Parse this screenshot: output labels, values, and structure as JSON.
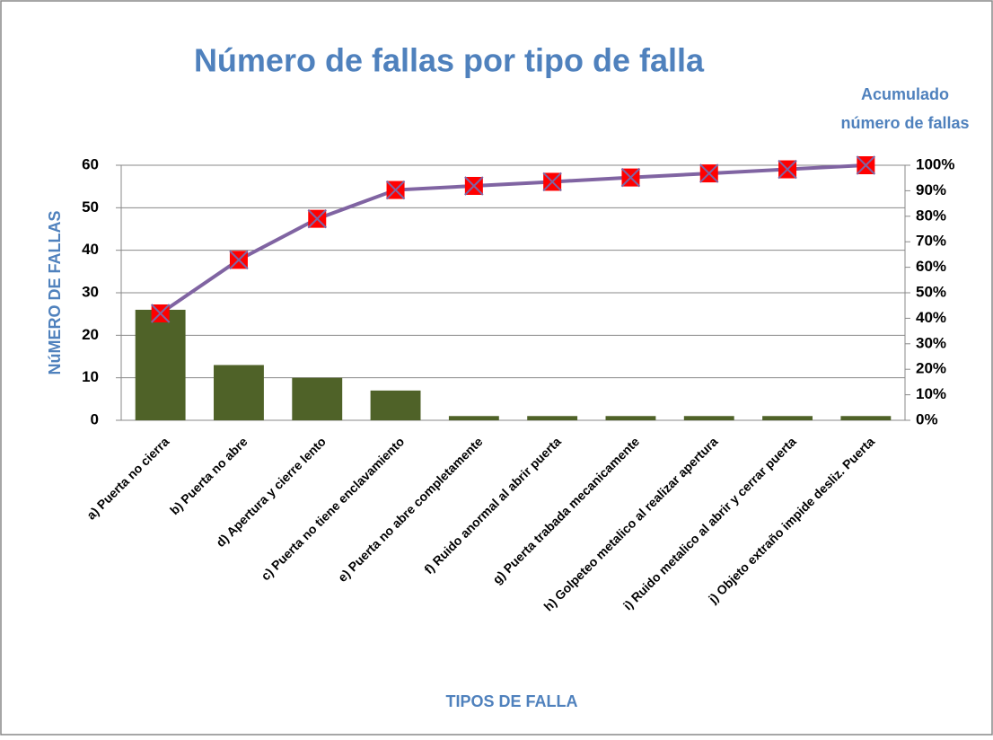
{
  "chart_data": {
    "type": "pareto",
    "title": "Número de fallas por tipo de falla",
    "x_label": "TIPOS DE FALLA",
    "y_label": "NúMERO DE FALLAS",
    "y2_label": [
      "Acumulado",
      "número de fallas"
    ],
    "categories": [
      "a) Puerta no cierra",
      "b) Puerta no abre",
      "d) Apertura y cierre lento",
      "c) Puerta no tiene enclavamiento",
      "e) Puerta no abre completamente",
      "f) Ruido anormal al abrir puerta",
      "g) Puerta trabada mecanicamente",
      "h) Golpeteo metalico al realizar apertura",
      "i) Ruido metalico al abrir y cerrar puerta",
      "j) Objeto extraño impide desliz. Puerta"
    ],
    "series": [
      {
        "type": "bar",
        "color": "#4f6228",
        "values": [
          26,
          13,
          10,
          7,
          1,
          1,
          1,
          1,
          1,
          1
        ]
      },
      {
        "type": "line",
        "axis": "y2",
        "color": "#8064a2",
        "marker_color": "#ff0000",
        "values": [
          41.9,
          62.9,
          79.0,
          90.3,
          91.9,
          93.5,
          95.2,
          96.8,
          98.4,
          100
        ]
      }
    ],
    "ylim": [
      0,
      60
    ],
    "yticks": [
      0,
      10,
      20,
      30,
      40,
      50,
      60
    ],
    "y2lim": [
      0,
      100
    ],
    "y2ticks": [
      {
        "value": 0,
        "label": "0%"
      },
      {
        "value": 10,
        "label": "10%"
      },
      {
        "value": 20,
        "label": "20%"
      },
      {
        "value": 30,
        "label": "30%"
      },
      {
        "value": 40,
        "label": "40%"
      },
      {
        "value": 50,
        "label": "50%"
      },
      {
        "value": 60,
        "label": "60%"
      },
      {
        "value": 70,
        "label": "70%"
      },
      {
        "value": 80,
        "label": "80%"
      },
      {
        "value": 90,
        "label": "90%"
      },
      {
        "value": 100,
        "label": "100%"
      }
    ],
    "grid": true
  }
}
